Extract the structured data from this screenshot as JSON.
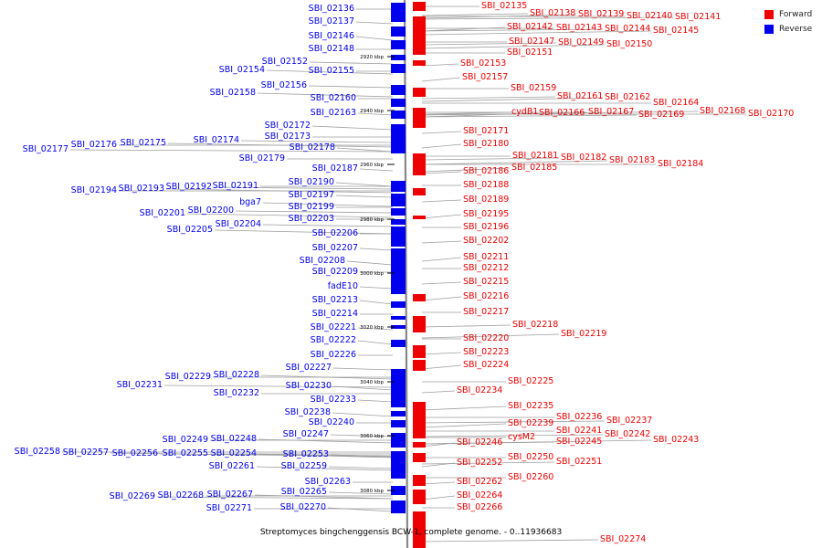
{
  "legend": {
    "forward_label": "Forward",
    "reverse_label": "Reverse",
    "forward_color": "#ee0000",
    "reverse_color": "#0000ee"
  },
  "caption": "Streptomyces bingchenggensis BCW-1, complete genome. - 0..11936683",
  "colors": {
    "backbone": "#888888",
    "label_line": "#9e9e9e"
  },
  "ruler_ticks": [
    {
      "label": "2920 kbp"
    },
    {
      "label": "2940 kbp"
    },
    {
      "label": "2960 kbp"
    },
    {
      "label": "2980 kbp"
    },
    {
      "label": "3000 kbp"
    },
    {
      "label": "3020 kbp"
    },
    {
      "label": "3040 kbp"
    },
    {
      "label": "3060 kbp"
    },
    {
      "label": "3080 kbp"
    }
  ],
  "reverse_genes": [
    "SBI_02136",
    "SBI_02137",
    "SBI_02146",
    "SBI_02148",
    "SBI_02152",
    "SBI_02154",
    "SBI_02155",
    "SBI_02156",
    "SBI_02158",
    "SBI_02160",
    "SBI_02163",
    "SBI_02172",
    "SBI_02173",
    "SBI_02174",
    "SBI_02175",
    "SBI_02176",
    "SBI_02177",
    "SBI_02178",
    "SBI_02179",
    "SBI_02187",
    "SBI_02190",
    "SBI_02191",
    "SBI_02192",
    "SBI_02193",
    "SBI_02194",
    "SBI_02197",
    "bga7",
    "SBI_02199",
    "SBI_02200",
    "SBI_02201",
    "SBI_02203",
    "SBI_02204",
    "SBI_02205",
    "SBI_02206",
    "SBI_02207",
    "SBI_02208",
    "SBI_02209",
    "fadE10",
    "SBI_02213",
    "SBI_02214",
    "SBI_02221",
    "SBI_02222",
    "SBI_02226",
    "SBI_02227",
    "SBI_02228",
    "SBI_02229",
    "SBI_02231",
    "SBI_02230",
    "SBI_02232",
    "SBI_02233",
    "SBI_02238",
    "SBI_02240",
    "SBI_02247",
    "SBI_02248",
    "SBI_02249",
    "SBI_02253",
    "SBI_02254",
    "SBI_02255",
    "SBI_02256",
    "SBI_02257",
    "SBI_02258",
    "SBI_02259",
    "SBI_02261",
    "SBI_02263",
    "SBI_02265",
    "SBI_02267",
    "SBI_02268",
    "SBI_02269",
    "SBI_02270",
    "SBI_02271"
  ],
  "forward_genes": [
    "SBI_02135",
    "SBI_02138",
    "SBI_02139",
    "SBI_02140",
    "SBI_02141",
    "SBI_02142",
    "SBI_02143",
    "SBI_02144",
    "SBI_02145",
    "SBI_02147",
    "SBI_02149",
    "SBI_02150",
    "SBI_02151",
    "SBI_02153",
    "SBI_02157",
    "SBI_02159",
    "SBI_02161",
    "SBI_02162",
    "SBI_02164",
    "cydB1",
    "SBI_02166",
    "SBI_02167",
    "SBI_02169",
    "SBI_02168",
    "SBI_02170",
    "SBI_02171",
    "SBI_02180",
    "SBI_02181",
    "SBI_02182",
    "SBI_02183",
    "SBI_02184",
    "SBI_02186",
    "SBI_02185",
    "SBI_02188",
    "SBI_02189",
    "SBI_02195",
    "SBI_02196",
    "SBI_02202",
    "SBI_02211",
    "SBI_02212",
    "SBI_02215",
    "SBI_02216",
    "SBI_02217",
    "SBI_02218",
    "SBI_02219",
    "SBI_02220",
    "SBI_02223",
    "SBI_02224",
    "SBI_02225",
    "SBI_02234",
    "SBI_02235",
    "SBI_02236",
    "SBI_02237",
    "SBI_02239",
    "SBI_02241",
    "SBI_02242",
    "SBI_02243",
    "cysM2",
    "SBI_02245",
    "SBI_02246",
    "SBI_02250",
    "SBI_02251",
    "SBI_02252",
    "SBI_02260",
    "SBI_02262",
    "SBI_02264",
    "SBI_02266",
    "SBI_02274"
  ]
}
